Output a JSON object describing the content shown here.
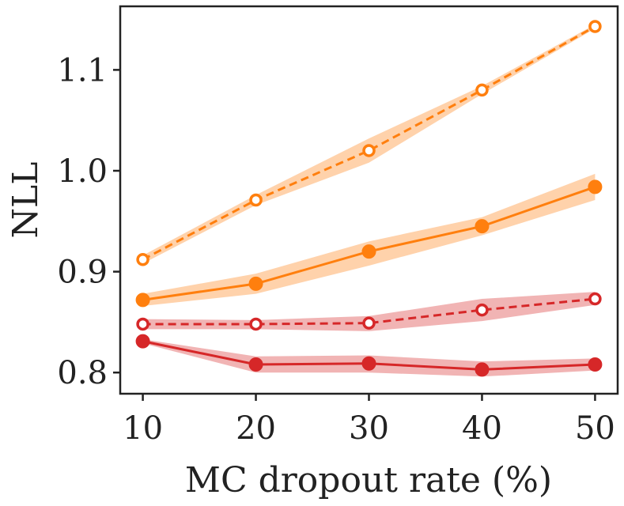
{
  "chart_data": {
    "type": "line",
    "title": "",
    "xlabel": "MC dropout rate (%)",
    "ylabel": "NLL",
    "x": [
      10,
      20,
      30,
      40,
      50
    ],
    "x_tick_labels": [
      "10",
      "20",
      "30",
      "40",
      "50"
    ],
    "y_ticks": [
      0.8,
      0.9,
      1.0,
      1.1
    ],
    "y_tick_labels": [
      "0.8",
      "0.9",
      "1.0",
      "1.1"
    ],
    "xlim": [
      8,
      52
    ],
    "ylim": [
      0.779,
      1.163
    ],
    "grid": false,
    "legend": null,
    "series": [
      {
        "name": "orange-dashed-open",
        "color": "#ff7f0e",
        "line_style": "dashed",
        "marker": "open-circle",
        "values": [
          0.912,
          0.971,
          1.02,
          1.08,
          1.143
        ],
        "band_lower": [
          0.908,
          0.966,
          1.008,
          1.076,
          1.141
        ],
        "band_upper": [
          0.916,
          0.976,
          1.032,
          1.084,
          1.145
        ]
      },
      {
        "name": "orange-solid-filled",
        "color": "#ff7f0e",
        "line_style": "solid",
        "marker": "filled-circle",
        "values": [
          0.872,
          0.888,
          0.92,
          0.945,
          0.984
        ],
        "band_lower": [
          0.866,
          0.878,
          0.906,
          0.936,
          0.971
        ],
        "band_upper": [
          0.878,
          0.898,
          0.93,
          0.954,
          0.997
        ]
      },
      {
        "name": "red-dashed-open",
        "color": "#d62728",
        "line_style": "dashed",
        "marker": "open-circle",
        "values": [
          0.848,
          0.848,
          0.849,
          0.862,
          0.873
        ],
        "band_lower": [
          0.843,
          0.843,
          0.841,
          0.851,
          0.867
        ],
        "band_upper": [
          0.853,
          0.852,
          0.856,
          0.873,
          0.88
        ]
      },
      {
        "name": "red-solid-filled",
        "color": "#d62728",
        "line_style": "solid",
        "marker": "filled-circle",
        "values": [
          0.831,
          0.808,
          0.809,
          0.803,
          0.808
        ],
        "band_lower": [
          0.829,
          0.8,
          0.8,
          0.796,
          0.802
        ],
        "band_upper": [
          0.833,
          0.816,
          0.817,
          0.811,
          0.814
        ]
      }
    ]
  }
}
